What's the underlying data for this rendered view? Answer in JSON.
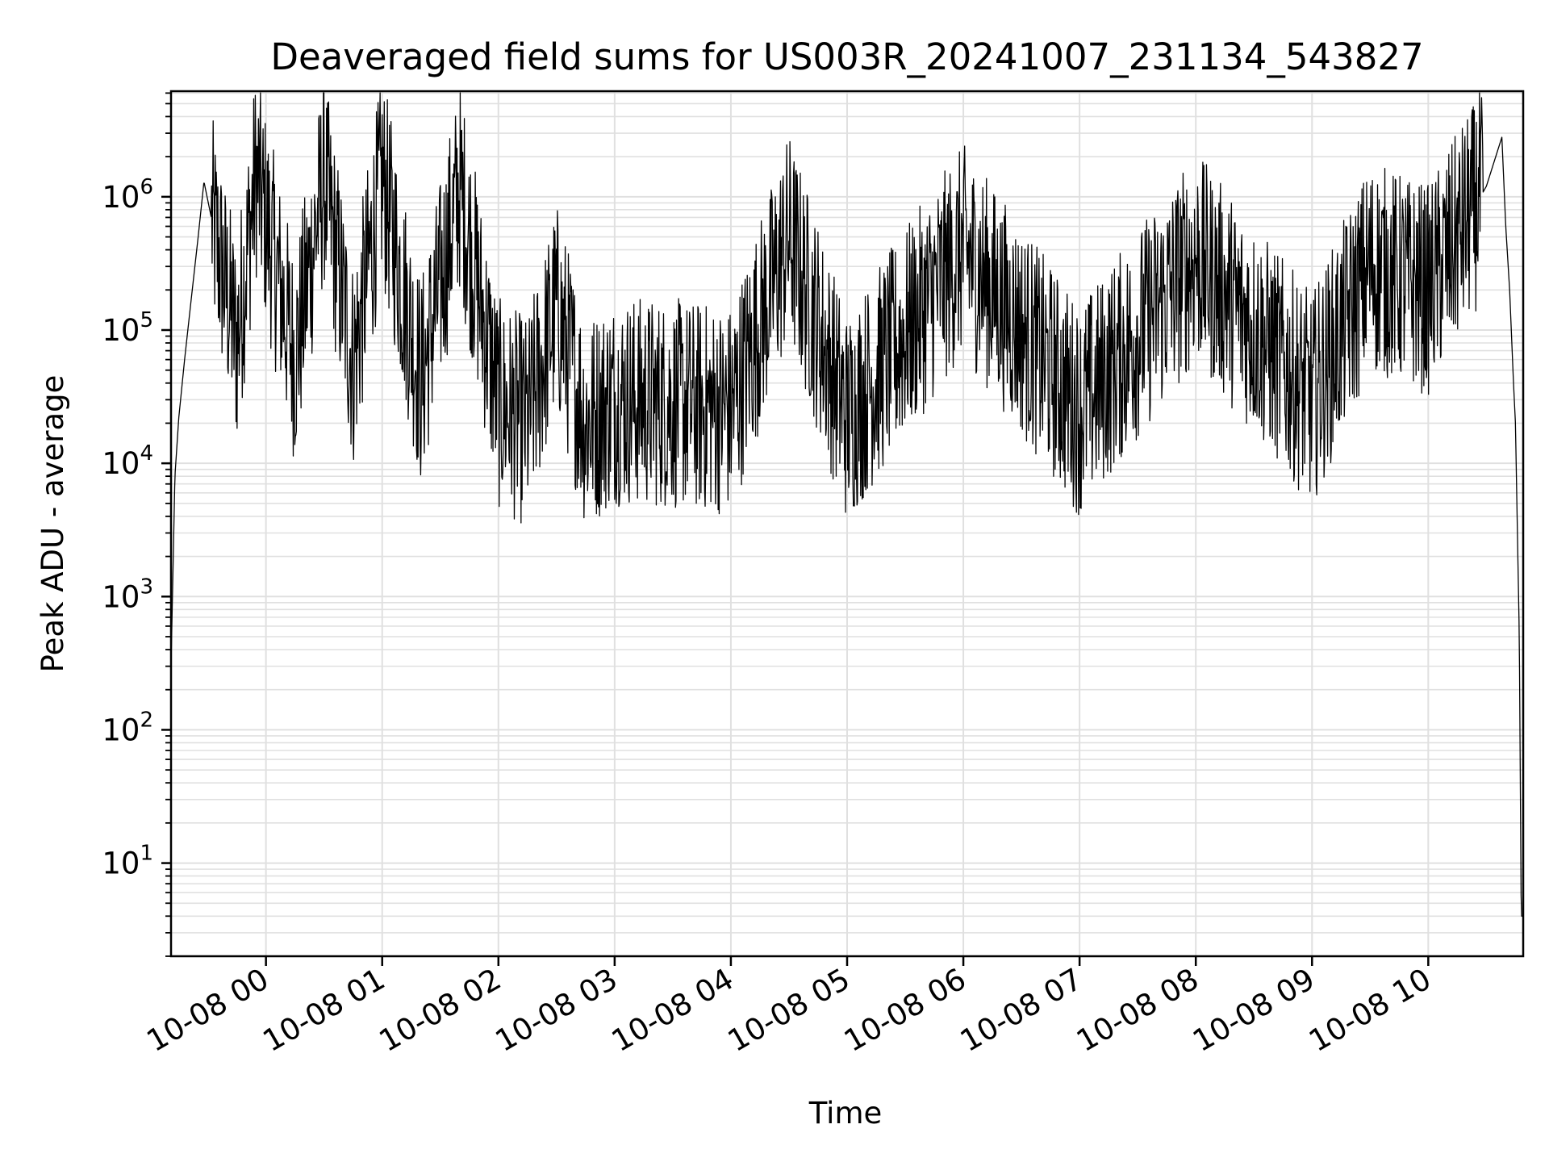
{
  "chart_data": {
    "type": "line",
    "title": "Deaveraged field sums for US003R_20241007_231134_543827",
    "xlabel": "Time",
    "ylabel": "Peak ADU - average",
    "xlim": [
      "2024-10-07 23:11",
      "2024-10-08 10:49"
    ],
    "ylim": [
      2,
      6200000
    ],
    "yscale": "log",
    "grid": true,
    "line_color": "#000000",
    "grid_color": "#e0e0e0",
    "x_ticks": [
      {
        "value": "2024-10-08 00:00",
        "label": "10-08 00"
      },
      {
        "value": "2024-10-08 01:00",
        "label": "10-08 01"
      },
      {
        "value": "2024-10-08 02:00",
        "label": "10-08 02"
      },
      {
        "value": "2024-10-08 03:00",
        "label": "10-08 03"
      },
      {
        "value": "2024-10-08 04:00",
        "label": "10-08 04"
      },
      {
        "value": "2024-10-08 05:00",
        "label": "10-08 05"
      },
      {
        "value": "2024-10-08 06:00",
        "label": "10-08 06"
      },
      {
        "value": "2024-10-08 07:00",
        "label": "10-08 07"
      },
      {
        "value": "2024-10-08 08:00",
        "label": "10-08 08"
      },
      {
        "value": "2024-10-08 09:00",
        "label": "10-08 09"
      },
      {
        "value": "2024-10-08 10:00",
        "label": "10-08 10"
      }
    ],
    "y_ticks": [
      {
        "value": 10,
        "base": "10",
        "exp": "1"
      },
      {
        "value": 100,
        "base": "10",
        "exp": "2"
      },
      {
        "value": 1000,
        "base": "10",
        "exp": "3"
      },
      {
        "value": 10000,
        "base": "10",
        "exp": "4"
      },
      {
        "value": 100000,
        "base": "10",
        "exp": "5"
      },
      {
        "value": 1000000,
        "base": "10",
        "exp": "6"
      }
    ],
    "series": [
      {
        "points": [
          [
            "2024-10-07 23:11",
            300
          ],
          [
            "2024-10-07 23:13",
            8000
          ],
          [
            "2024-10-07 23:15",
            22000
          ],
          [
            "2024-10-07 23:18",
            60000
          ],
          [
            "2024-10-07 23:21",
            150000
          ],
          [
            "2024-10-07 23:25",
            500000
          ],
          [
            "2024-10-07 23:28",
            1300000
          ],
          [
            "2024-10-07 23:45",
            80000
          ],
          [
            "2024-10-07 23:55",
            1500000
          ],
          [
            "2024-10-08 00:15",
            60000
          ],
          [
            "2024-10-08 00:30",
            1400000
          ],
          [
            "2024-10-08 00:45",
            55000
          ],
          [
            "2024-10-08 01:00",
            1400000
          ],
          [
            "2024-10-08 01:20",
            40000
          ],
          [
            "2024-10-08 01:40",
            1200000
          ],
          [
            "2024-10-08 02:00",
            28000
          ],
          [
            "2024-10-08 02:15",
            20000
          ],
          [
            "2024-10-08 02:30",
            150000
          ],
          [
            "2024-10-08 02:45",
            20000
          ],
          [
            "2024-10-08 03:00",
            30000
          ],
          [
            "2024-10-08 03:30",
            28000
          ],
          [
            "2024-10-08 04:00",
            25000
          ],
          [
            "2024-10-08 04:30",
            500000
          ],
          [
            "2024-10-08 05:00",
            22000
          ],
          [
            "2024-10-08 06:00",
            400000
          ],
          [
            "2024-10-08 07:00",
            25000
          ],
          [
            "2024-10-08 08:00",
            350000
          ],
          [
            "2024-10-08 09:00",
            30000
          ],
          [
            "2024-10-08 09:30",
            300000
          ],
          [
            "2024-10-08 10:00",
            200000
          ],
          [
            "2024-10-08 10:30",
            1200000
          ],
          [
            "2024-10-08 10:38",
            2800000
          ],
          [
            "2024-10-08 10:40",
            600000
          ],
          [
            "2024-10-08 10:42",
            200000
          ],
          [
            "2024-10-08 10:44",
            40000
          ],
          [
            "2024-10-08 10:45",
            20000
          ],
          [
            "2024-10-08 10:47",
            500
          ],
          [
            "2024-10-08 10:48",
            4
          ],
          [
            "2024-10-08 10:49",
            4
          ]
        ]
      }
    ]
  }
}
